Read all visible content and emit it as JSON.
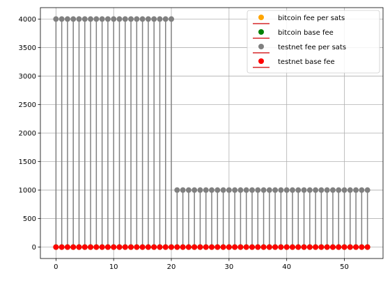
{
  "chart_data": {
    "type": "stem",
    "xlim": [
      -2.7,
      56.7
    ],
    "ylim": [
      -200,
      4200
    ],
    "xticks": [
      0,
      10,
      20,
      30,
      40,
      50
    ],
    "yticks": [
      0,
      500,
      1000,
      1500,
      2000,
      2500,
      3000,
      3500,
      4000
    ],
    "grid": true,
    "legend_position": "upper-right",
    "x": [
      0,
      1,
      2,
      3,
      4,
      5,
      6,
      7,
      8,
      9,
      10,
      11,
      12,
      13,
      14,
      15,
      16,
      17,
      18,
      19,
      20,
      21,
      22,
      23,
      24,
      25,
      26,
      27,
      28,
      29,
      30,
      31,
      32,
      33,
      34,
      35,
      36,
      37,
      38,
      39,
      40,
      41,
      42,
      43,
      44,
      45,
      46,
      47,
      48,
      49,
      50,
      51,
      52,
      53,
      54
    ],
    "series": [
      {
        "name": "bitcoin fee per sats",
        "color": "#ffa500",
        "values": [
          0,
          0,
          0,
          0,
          0,
          0,
          0,
          0,
          0,
          0,
          0,
          0,
          0,
          0,
          0,
          0,
          0,
          0,
          0,
          0,
          0,
          0,
          0,
          0,
          0,
          0,
          0,
          0,
          0,
          0,
          0,
          0,
          0,
          0,
          0,
          0,
          0,
          0,
          0,
          0,
          0,
          0,
          0,
          0,
          0,
          0,
          0,
          0,
          0,
          0,
          0,
          0,
          0,
          0,
          0
        ]
      },
      {
        "name": "bitcoin base fee",
        "color": "#008000",
        "values": [
          0,
          0,
          0,
          0,
          0,
          0,
          0,
          0,
          0,
          0,
          0,
          0,
          0,
          0,
          0,
          0,
          0,
          0,
          0,
          0,
          0,
          0,
          0,
          0,
          0,
          0,
          0,
          0,
          0,
          0,
          0,
          0,
          0,
          0,
          0,
          0,
          0,
          0,
          0,
          0,
          0,
          0,
          0,
          0,
          0,
          0,
          0,
          0,
          0,
          0,
          0,
          0,
          0,
          0,
          0
        ]
      },
      {
        "name": "testnet fee per sats",
        "color": "#808080",
        "values": [
          4000,
          4000,
          4000,
          4000,
          4000,
          4000,
          4000,
          4000,
          4000,
          4000,
          4000,
          4000,
          4000,
          4000,
          4000,
          4000,
          4000,
          4000,
          4000,
          4000,
          4000,
          1000,
          1000,
          1000,
          1000,
          1000,
          1000,
          1000,
          1000,
          1000,
          1000,
          1000,
          1000,
          1000,
          1000,
          1000,
          1000,
          1000,
          1000,
          1000,
          1000,
          1000,
          1000,
          1000,
          1000,
          1000,
          1000,
          1000,
          1000,
          1000,
          1000,
          1000,
          1000,
          1000,
          1000
        ]
      },
      {
        "name": "testnet base fee",
        "color": "#ff0000",
        "values": [
          0,
          0,
          0,
          0,
          0,
          0,
          0,
          0,
          0,
          0,
          0,
          0,
          0,
          0,
          0,
          0,
          0,
          0,
          0,
          0,
          0,
          0,
          0,
          0,
          0,
          0,
          0,
          0,
          0,
          0,
          0,
          0,
          0,
          0,
          0,
          0,
          0,
          0,
          0,
          0,
          0,
          0,
          0,
          0,
          0,
          0,
          0,
          0,
          0,
          0,
          0,
          0,
          0,
          0,
          0
        ]
      }
    ],
    "baseline_color": "#d62728"
  }
}
